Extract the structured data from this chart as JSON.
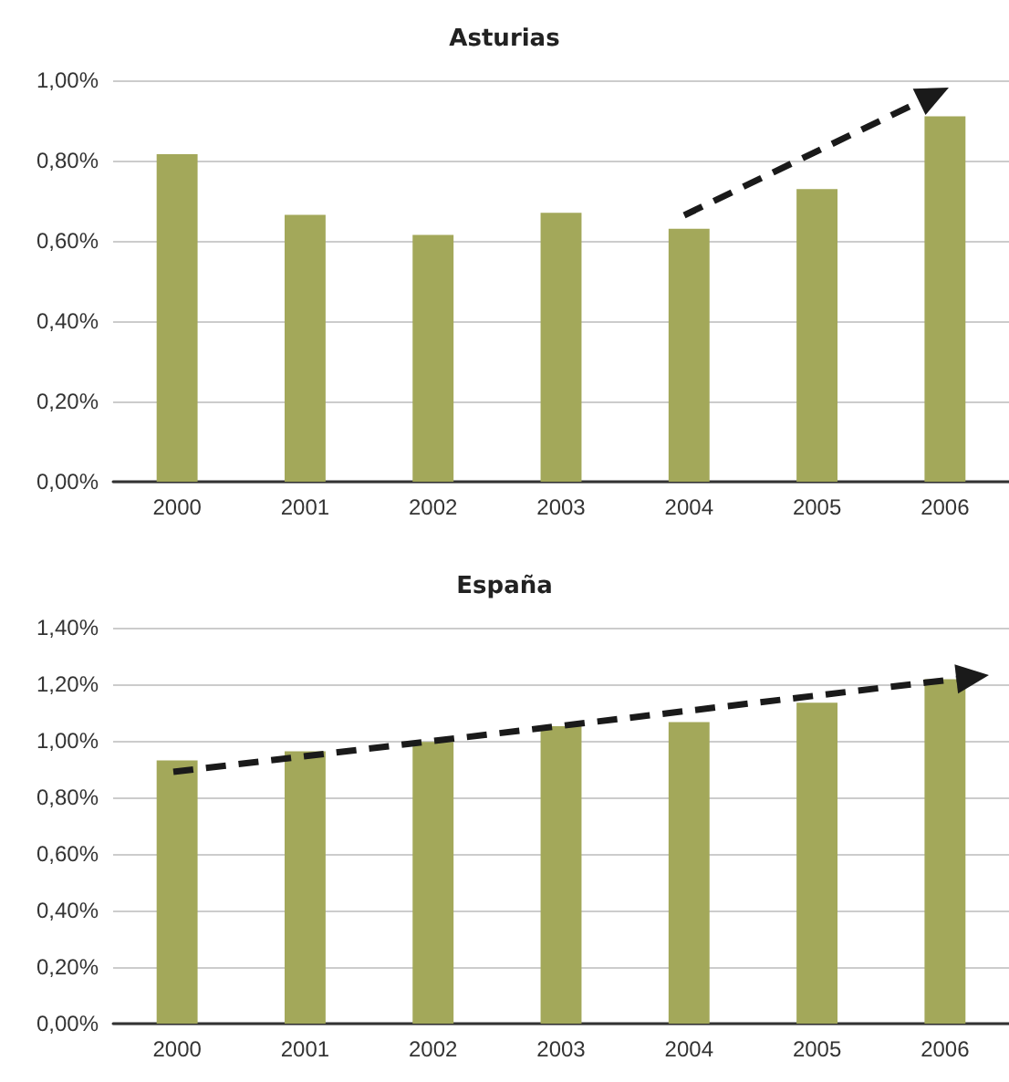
{
  "chart_data": [
    {
      "type": "bar",
      "title": "Asturias",
      "categories": [
        "2000",
        "2001",
        "2002",
        "2003",
        "2004",
        "2005",
        "2006"
      ],
      "values": [
        0.816,
        0.665,
        0.615,
        0.67,
        0.63,
        0.729,
        0.91
      ],
      "color": "#a3a85a",
      "ylim": [
        0,
        1
      ],
      "yticks": [
        {
          "value": 0,
          "label": "0,00%"
        },
        {
          "value": 0.2,
          "label": "0,20%"
        },
        {
          "value": 0.4,
          "label": "0,40%"
        },
        {
          "value": 0.6,
          "label": "0,60%"
        },
        {
          "value": 0.8,
          "label": "0,80%"
        },
        {
          "value": 1,
          "label": "1,00%"
        }
      ],
      "grid": "y"
    },
    {
      "type": "bar",
      "title": "España",
      "categories": [
        "2000",
        "2001",
        "2002",
        "2003",
        "2004",
        "2005",
        "2006"
      ],
      "values": [
        0.931,
        0.963,
        0.996,
        1.052,
        1.066,
        1.135,
        1.218
      ],
      "color": "#a3a85a",
      "ylim": [
        0,
        1.4
      ],
      "yticks": [
        {
          "value": 0,
          "label": "0,00%"
        },
        {
          "value": 0.2,
          "label": "0,20%"
        },
        {
          "value": 0.4,
          "label": "0,40%"
        },
        {
          "value": 0.6,
          "label": "0,60%"
        },
        {
          "value": 0.8,
          "label": "0,80%"
        },
        {
          "value": 1,
          "label": "1,00%"
        },
        {
          "value": 1.2,
          "label": "1,20%"
        },
        {
          "value": 1.4,
          "label": "1,40%"
        }
      ],
      "grid": "y"
    }
  ]
}
